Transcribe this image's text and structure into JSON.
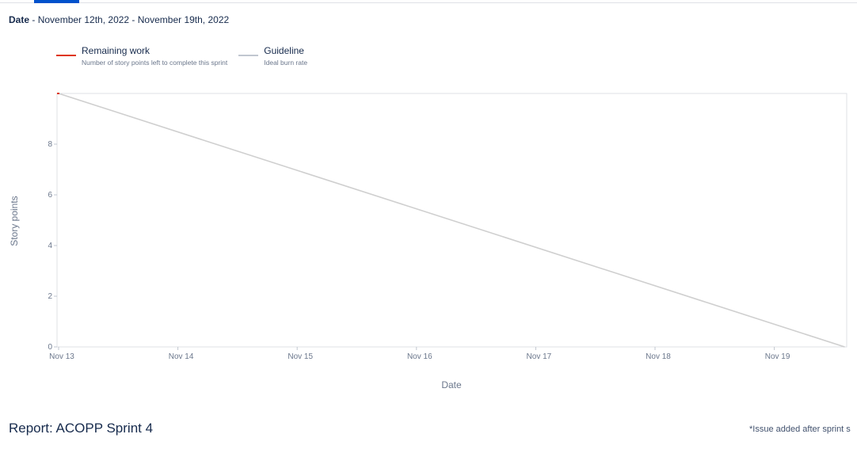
{
  "header": {
    "date_label": "Date",
    "date_separator": " - ",
    "date_range": "November 12th, 2022 - November 19th, 2022"
  },
  "legend": [
    {
      "title": "Remaining work",
      "description": "Number of story points left to complete this sprint",
      "color": "#de350b"
    },
    {
      "title": "Guideline",
      "description": "Ideal burn rate",
      "color": "#c1c7d0"
    }
  ],
  "chart_data": {
    "type": "line",
    "xlabel": "Date",
    "ylabel": "Story points",
    "x_ticks": [
      "Nov 13",
      "Nov 14",
      "Nov 15",
      "Nov 16",
      "Nov 17",
      "Nov 18",
      "Nov 19"
    ],
    "y_ticks": [
      0,
      2,
      4,
      6,
      8
    ],
    "xlim": [
      0,
      6.59
    ],
    "ylim": [
      0,
      10
    ],
    "grid": false,
    "legend_position": "top-left",
    "series": [
      {
        "name": "Guideline",
        "color": "#cfcfcf",
        "points": [
          [
            0,
            10
          ],
          [
            6.59,
            0
          ]
        ]
      },
      {
        "name": "Remaining work",
        "color": "#de350b",
        "points": [
          [
            0,
            10
          ]
        ]
      }
    ]
  },
  "report": {
    "title": "Report: ACOPP Sprint 4",
    "footnote": "*Issue added after sprint s"
  }
}
